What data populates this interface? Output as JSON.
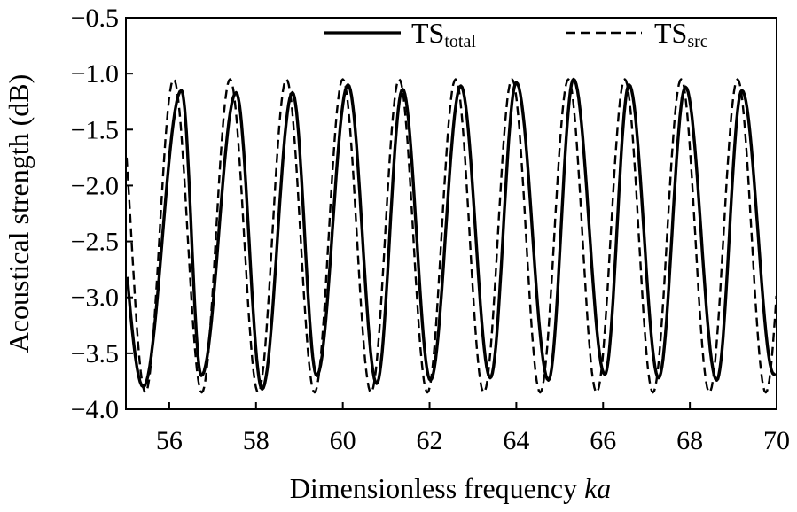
{
  "chart_data": {
    "type": "line",
    "title": "",
    "xlabel": "Dimensionless frequency",
    "xlabel_italic": "ka",
    "ylabel": "Acoustical strength (dB)",
    "xlim": [
      55,
      70
    ],
    "ylim": [
      -4.0,
      -0.5
    ],
    "x_ticks": [
      56,
      58,
      60,
      62,
      64,
      66,
      68,
      70
    ],
    "x_tick_labels": [
      "56",
      "58",
      "60",
      "62",
      "64",
      "66",
      "68",
      "70"
    ],
    "y_ticks": [
      -0.5,
      -1.0,
      -1.5,
      -2.0,
      -2.5,
      -3.0,
      -3.5,
      -4.0
    ],
    "y_tick_labels": [
      "−0.5",
      "−1.0",
      "−1.5",
      "−2.0",
      "−2.5",
      "−3.0",
      "−3.5",
      "−4.0"
    ],
    "grid": false,
    "legend_position": "top-right",
    "series": [
      {
        "name": "TS_total",
        "legend_main": "TS",
        "legend_sub": "total",
        "style": "solid",
        "color": "#000000",
        "peaks": [
          [
            56.28,
            -1.15
          ],
          [
            57.54,
            -1.17
          ],
          [
            58.84,
            -1.17
          ],
          [
            60.12,
            -1.1
          ],
          [
            61.38,
            -1.14
          ],
          [
            62.72,
            -1.11
          ],
          [
            64.0,
            -1.08
          ],
          [
            65.32,
            -1.05
          ],
          [
            66.6,
            -1.1
          ],
          [
            67.9,
            -1.12
          ],
          [
            69.2,
            -1.15
          ]
        ],
        "troughs": [
          [
            55.4,
            -3.8
          ],
          [
            56.74,
            -3.7
          ],
          [
            58.14,
            -3.82
          ],
          [
            59.4,
            -3.7
          ],
          [
            60.78,
            -3.77
          ],
          [
            62.02,
            -3.74
          ],
          [
            63.4,
            -3.72
          ],
          [
            64.74,
            -3.74
          ],
          [
            66.04,
            -3.69
          ],
          [
            67.28,
            -3.72
          ],
          [
            68.62,
            -3.74
          ],
          [
            69.94,
            -3.69
          ]
        ]
      },
      {
        "name": "TS_src",
        "legend_main": "TS",
        "legend_sub": "src",
        "style": "dashed",
        "color": "#000000",
        "peaks": [
          [
            56.1,
            -1.05
          ],
          [
            57.4,
            -1.05
          ],
          [
            58.7,
            -1.05
          ],
          [
            60.0,
            -1.05
          ],
          [
            61.3,
            -1.05
          ],
          [
            62.6,
            -1.05
          ],
          [
            63.9,
            -1.05
          ],
          [
            65.2,
            -1.05
          ],
          [
            66.5,
            -1.05
          ],
          [
            67.8,
            -1.05
          ],
          [
            69.1,
            -1.05
          ]
        ],
        "troughs": [
          [
            55.45,
            -3.85
          ],
          [
            56.75,
            -3.85
          ],
          [
            58.05,
            -3.85
          ],
          [
            59.35,
            -3.85
          ],
          [
            60.65,
            -3.85
          ],
          [
            61.95,
            -3.85
          ],
          [
            63.25,
            -3.85
          ],
          [
            64.55,
            -3.85
          ],
          [
            65.85,
            -3.85
          ],
          [
            67.15,
            -3.85
          ],
          [
            68.45,
            -3.85
          ],
          [
            69.75,
            -3.85
          ]
        ]
      }
    ]
  }
}
